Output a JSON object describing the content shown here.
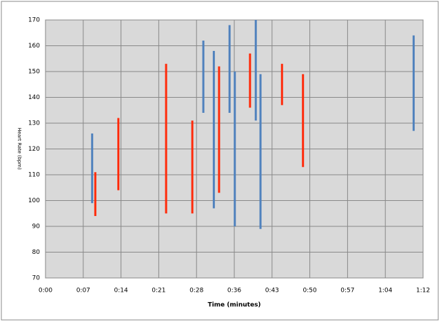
{
  "chart_data": {
    "type": "range",
    "x_label": "Time (minutes)",
    "y_label": "Heart Rate (bpm)",
    "xlim": [
      0,
      72
    ],
    "xticks": [
      {
        "value": 0,
        "label": "0:00"
      },
      {
        "value": 7.2,
        "label": "0:07"
      },
      {
        "value": 14.4,
        "label": "0:14"
      },
      {
        "value": 21.6,
        "label": "0:21"
      },
      {
        "value": 28.8,
        "label": "0:28"
      },
      {
        "value": 36,
        "label": "0:36"
      },
      {
        "value": 43.2,
        "label": "0:43"
      },
      {
        "value": 50.4,
        "label": "0:50"
      },
      {
        "value": 57.6,
        "label": "0:57"
      },
      {
        "value": 64.8,
        "label": "1:04"
      },
      {
        "value": 72,
        "label": "1:12"
      }
    ],
    "ylim": [
      70,
      170
    ],
    "yticks": [
      70,
      80,
      90,
      100,
      110,
      120,
      130,
      140,
      150,
      160,
      170
    ],
    "grid": true,
    "series": [
      {
        "color": "#4f81bd",
        "x": [
          8.9,
          30.1,
          32.1,
          35.1,
          36.1,
          40.1,
          41.0,
          70.2
        ],
        "low": [
          99,
          134,
          97,
          134,
          90,
          131,
          89,
          127
        ],
        "high": [
          126,
          162,
          158,
          168,
          150,
          170,
          149,
          164
        ]
      },
      {
        "color": "#ff2a0a",
        "x": [
          9.5,
          13.9,
          23.0,
          28.0,
          33.1,
          39.0,
          45.1,
          49.1
        ],
        "low": [
          94,
          104,
          95,
          95,
          103,
          136,
          137,
          113
        ],
        "high": [
          111,
          132,
          153,
          131,
          152,
          157,
          153,
          149
        ]
      }
    ]
  }
}
